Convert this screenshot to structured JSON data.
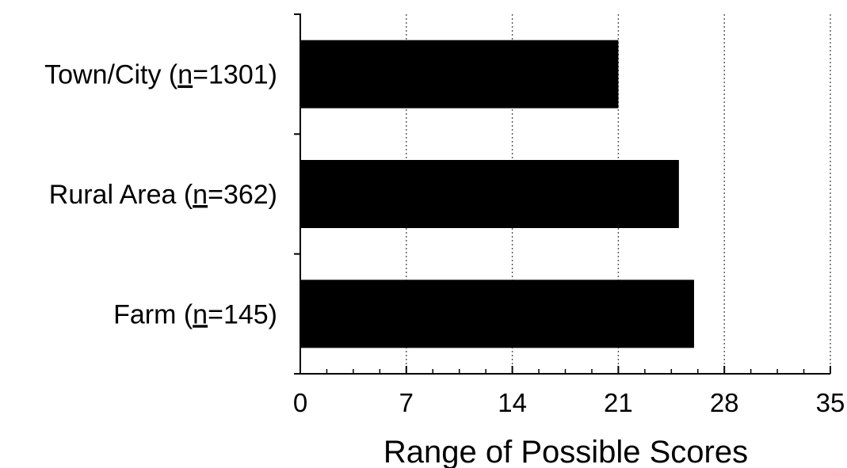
{
  "chart_data": {
    "type": "bar",
    "orientation": "horizontal",
    "categories": [
      "Town/City (n=1301)",
      "Rural Area (n=362)",
      "Farm (n=145)"
    ],
    "category_parts": [
      {
        "name": "Town/City",
        "n": "1301"
      },
      {
        "name": "Rural Area",
        "n": "362"
      },
      {
        "name": "Farm",
        "n": "145"
      }
    ],
    "values": [
      21,
      25,
      26
    ],
    "xlabel": "Range of Possible Scores",
    "xlim": [
      0,
      35
    ],
    "xticks": [
      0,
      7,
      14,
      21,
      28,
      35
    ],
    "grid": "vertical-dotted",
    "bar_color": "#000000"
  }
}
